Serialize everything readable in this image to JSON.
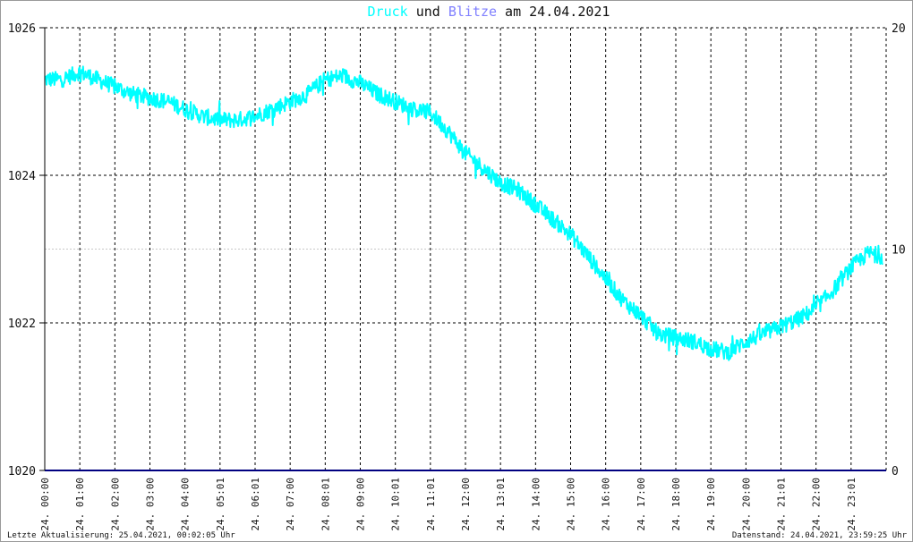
{
  "header": {
    "word_druck": "Druck",
    "word_und": " und ",
    "word_blitze": "Blitze",
    "word_am": " am 24.04.2021"
  },
  "footer": {
    "left": "Letzte Aktualisierung: 25.04.2021, 00:02:05 Uhr",
    "right": "Datenstand: 24.04.2021, 23:59:25 Uhr"
  },
  "colors": {
    "druck": "#00ffff",
    "blitze": "#8080ff",
    "baseline": "#000080",
    "grid": "#000000",
    "midline": "#c8c8c8"
  },
  "chart_data": {
    "type": "line",
    "title": "Druck und Blitze am 24.04.2021",
    "xlabel": "",
    "ylabel": "",
    "xlim": [
      "24.04.2021 00:00",
      "24.04.2021 24:00"
    ],
    "ylim": [
      1020,
      1026
    ],
    "y_right_lim": [
      0,
      20
    ],
    "yticks_left": [
      "1020",
      "1022",
      "1024",
      "1026"
    ],
    "yticks_right": [
      "0",
      "10",
      "20"
    ],
    "xticks": [
      "24. 00:00",
      "24. 01:00",
      "24. 02:00",
      "24. 03:00",
      "24. 04:00",
      "24. 05:01",
      "24. 06:01",
      "24. 07:00",
      "24. 08:01",
      "24. 09:00",
      "24. 10:01",
      "24. 11:01",
      "24. 12:00",
      "24. 13:01",
      "24. 14:00",
      "24. 15:00",
      "24. 16:00",
      "24. 17:00",
      "24. 18:00",
      "24. 19:00",
      "24. 20:00",
      "24. 21:01",
      "24. 22:00",
      "24. 23:01"
    ],
    "grid": true,
    "series": [
      {
        "name": "Druck",
        "axis": "left",
        "x_hours": [
          0,
          0.5,
          1,
          1.5,
          2,
          2.5,
          3,
          3.5,
          4,
          4.5,
          5,
          5.5,
          6,
          6.5,
          7,
          7.5,
          8,
          8.5,
          9,
          9.5,
          10,
          10.5,
          11,
          11.5,
          12,
          12.5,
          13,
          13.5,
          14,
          14.5,
          15,
          15.5,
          16,
          16.5,
          17,
          17.5,
          18,
          18.5,
          19,
          19.5,
          20,
          20.5,
          21,
          21.5,
          22,
          22.5,
          23,
          23.5,
          23.9
        ],
        "values": [
          1025.3,
          1025.3,
          1025.4,
          1025.3,
          1025.2,
          1025.1,
          1025.05,
          1025.0,
          1024.9,
          1024.8,
          1024.75,
          1024.75,
          1024.8,
          1024.9,
          1025.0,
          1025.1,
          1025.3,
          1025.35,
          1025.25,
          1025.1,
          1025.0,
          1024.9,
          1024.85,
          1024.6,
          1024.3,
          1024.1,
          1023.9,
          1023.8,
          1023.6,
          1023.4,
          1023.2,
          1022.9,
          1022.6,
          1022.3,
          1022.1,
          1021.85,
          1021.8,
          1021.75,
          1021.65,
          1021.6,
          1021.75,
          1021.85,
          1021.95,
          1022.05,
          1022.2,
          1022.45,
          1022.75,
          1022.95,
          1022.9
        ]
      },
      {
        "name": "Blitze",
        "axis": "right",
        "x_hours": [
          0,
          24
        ],
        "values": [
          0,
          0
        ]
      }
    ]
  }
}
